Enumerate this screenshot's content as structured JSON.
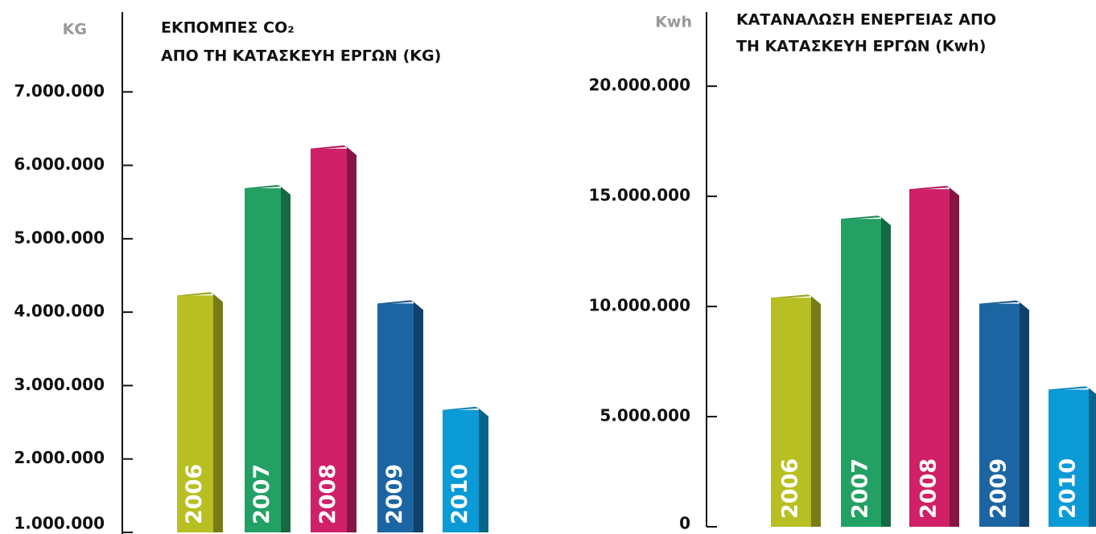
{
  "chart_data": [
    {
      "type": "bar3d",
      "unit": "KG",
      "title": [
        "ΕΚΠΟΜΠΕΣ CO₂",
        "ΑΠΟ ΤΗ ΚΑΤΑΣΚΕΥΗ ΕΡΓΩΝ (KG)"
      ],
      "categories": [
        "2006",
        "2007",
        "2008",
        "2009",
        "2010"
      ],
      "values": [
        4250000,
        5710000,
        6250000,
        4140000,
        2690000
      ],
      "colors": [
        "#b8bf22",
        "#23a165",
        "#cf2068",
        "#1c65a3",
        "#0a9ad6"
      ],
      "ylim": [
        1000000,
        8000000
      ],
      "yticks": [
        {
          "value": 1000000,
          "label": "1.000.000"
        },
        {
          "value": 2000000,
          "label": "2.000.000"
        },
        {
          "value": 3000000,
          "label": "3.000.000"
        },
        {
          "value": 4000000,
          "label": "4.000.000"
        },
        {
          "value": 5000000,
          "label": "5.000.000"
        },
        {
          "value": 6000000,
          "label": "6.000.000"
        },
        {
          "value": 7000000,
          "label": "7.000.000"
        }
      ]
    },
    {
      "type": "bar3d",
      "unit": "Kwh",
      "title": [
        "ΚΑΤΑΝΑΛΩΣΗ ΕΝΕΡΓΕΙΑΣ ΑΠΟ",
        "ΤΗ ΚΑΤΑΣΚΕΥΗ ΕΡΓΩΝ (Kwh)"
      ],
      "categories": [
        "2006",
        "2007",
        "2008",
        "2009",
        "2010"
      ],
      "values": [
        10470000,
        14050000,
        15400000,
        10200000,
        6300000
      ],
      "colors": [
        "#b8bf22",
        "#23a165",
        "#cf2068",
        "#1c65a3",
        "#0a9ad6"
      ],
      "ylim": [
        0,
        23000000
      ],
      "yticks": [
        0,
        {
          "value": 5000000,
          "label": "5.000.000"
        },
        {
          "value": 10000000,
          "label": "10.000.000"
        },
        {
          "value": 15000000,
          "label": "15.000.000"
        },
        {
          "value": 20000000,
          "label": "20.000.000"
        }
      ]
    }
  ]
}
